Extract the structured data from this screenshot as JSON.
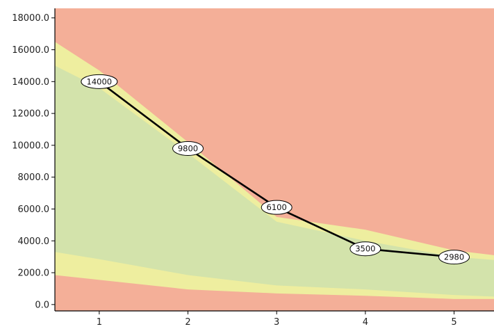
{
  "chart_data": {
    "type": "line",
    "title": "",
    "xlabel": "",
    "ylabel": "",
    "x": [
      1,
      2,
      3,
      4,
      5
    ],
    "xlim": [
      0.5,
      5.45
    ],
    "ylim": [
      -400,
      18600
    ],
    "y_ticks": [
      0,
      2000,
      4000,
      6000,
      8000,
      10000,
      12000,
      14000,
      16000,
      18000
    ],
    "y_tick_labels": [
      "0.0",
      "2000.0",
      "4000.0",
      "6000.0",
      "8000.0",
      "10000.0",
      "12000.0",
      "14000.0",
      "16000.0",
      "18000.0"
    ],
    "x_tick_labels": [
      "1",
      "2",
      "3",
      "4",
      "5"
    ],
    "grid": false,
    "series": [
      {
        "values": [
          14000,
          9800,
          6100,
          3500,
          2980
        ],
        "labels": [
          "14000",
          "9800",
          "6100",
          "3500",
          "2980"
        ],
        "color": "#000000"
      }
    ],
    "bands": {
      "x": [
        0.5,
        1,
        2,
        3,
        4,
        5,
        5.45
      ],
      "red_low_top": [
        1850,
        1550,
        950,
        700,
        550,
        350,
        350
      ],
      "yellow_low_top": [
        3300,
        2850,
        1850,
        1200,
        950,
        600,
        500
      ],
      "green_top": [
        15000,
        13600,
        9500,
        5200,
        4000,
        3000,
        2800
      ],
      "yellow_high_top": [
        16500,
        14700,
        10200,
        5500,
        4700,
        3400,
        3100
      ],
      "background_top": 18600
    },
    "colors": {
      "red": "#f4af98",
      "yellow": "#eeee9f",
      "green": "#d3e3ab",
      "line": "#000000",
      "axis": "#000000"
    }
  }
}
